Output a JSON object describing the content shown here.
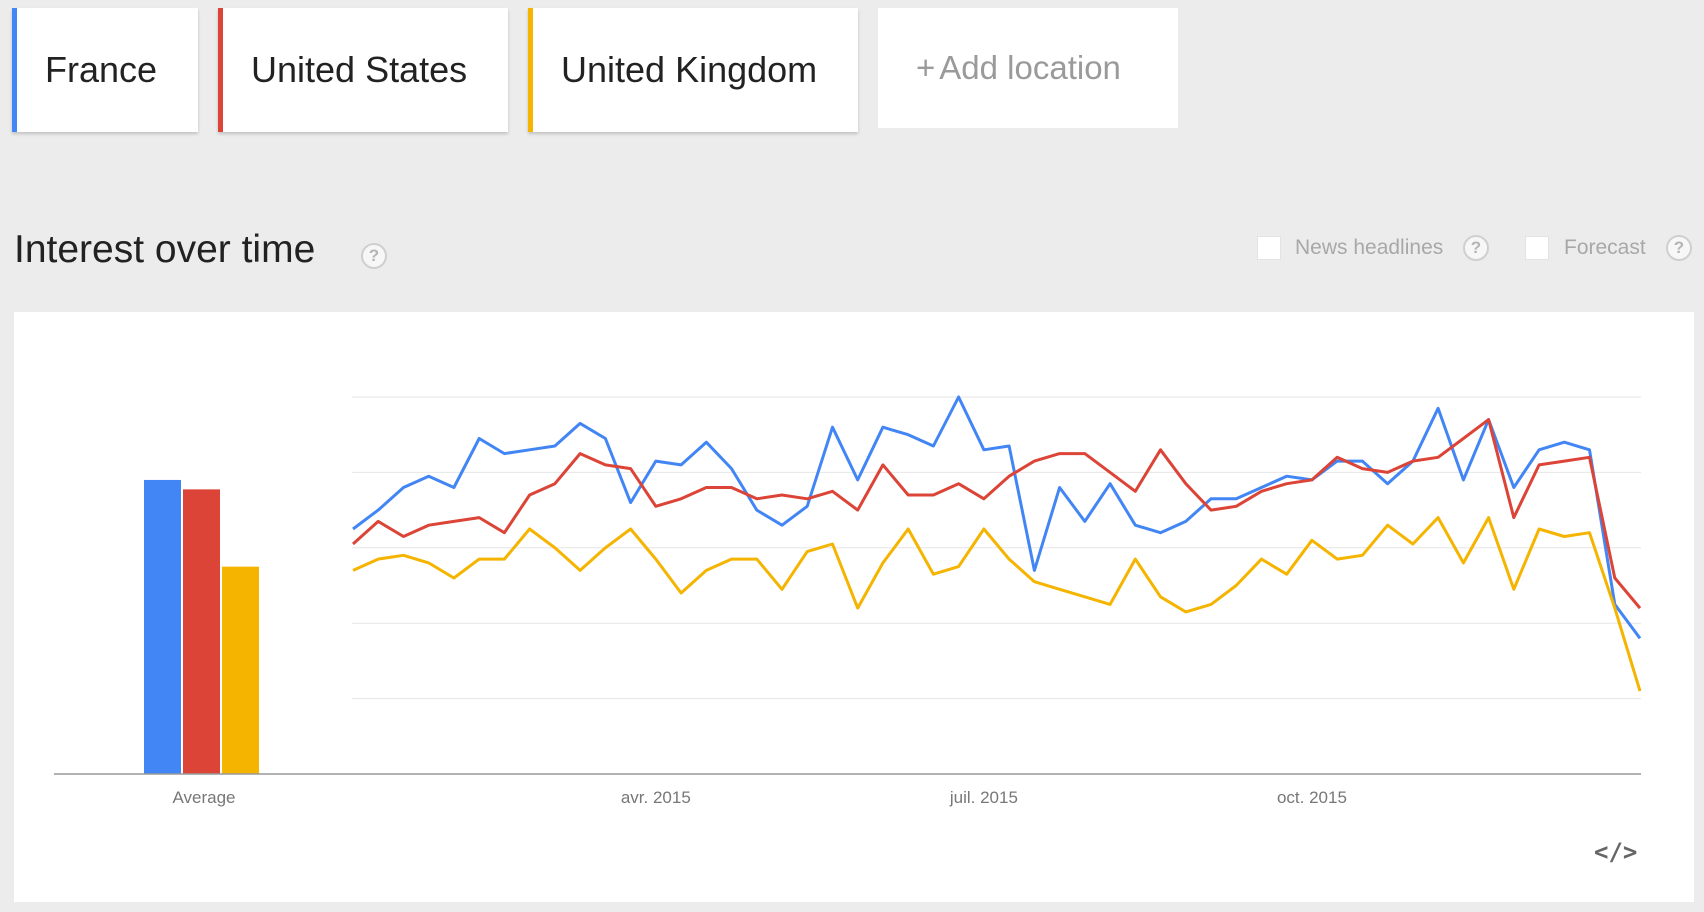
{
  "locations": [
    {
      "label": "France",
      "color": "#4285f4"
    },
    {
      "label": "United States",
      "color": "#db4437"
    },
    {
      "label": "United Kingdom",
      "color": "#f4b400"
    }
  ],
  "add_location": {
    "plus": "+",
    "label": "Add location"
  },
  "section": {
    "title": "Interest over time",
    "help": "?",
    "options": [
      {
        "label": "News headlines",
        "checked": false
      },
      {
        "label": "Forecast",
        "checked": false
      }
    ]
  },
  "embed_label": "</>",
  "chart_data": [
    {
      "type": "bar",
      "categories": [
        "Average"
      ],
      "series": [
        {
          "name": "France",
          "color": "#4285f4",
          "values": [
            78
          ]
        },
        {
          "name": "United States",
          "color": "#db4437",
          "values": [
            75.5
          ]
        },
        {
          "name": "United Kingdom",
          "color": "#f4b400",
          "values": [
            55
          ]
        }
      ],
      "ylim": [
        0,
        100
      ]
    },
    {
      "type": "line",
      "x_tick_labels": [
        "avr. 2015",
        "juil. 2015",
        "oct. 2015"
      ],
      "x_tick_index": [
        12,
        25,
        38
      ],
      "ylim": [
        0,
        100
      ],
      "gridlines": [
        20,
        40,
        60,
        80,
        100
      ],
      "series": [
        {
          "name": "France",
          "color": "#4285f4",
          "values": [
            65,
            70,
            76,
            79,
            76,
            89,
            85,
            86,
            87,
            93,
            89,
            72,
            83,
            82,
            88,
            81,
            70,
            66,
            71,
            92,
            78,
            92,
            90,
            87,
            100,
            86,
            87,
            54,
            76,
            67,
            77,
            66,
            64,
            67,
            73,
            73,
            76,
            79,
            78,
            83,
            83,
            77,
            83,
            97,
            78,
            94,
            76,
            86,
            88,
            86,
            45,
            36
          ]
        },
        {
          "name": "United States",
          "color": "#db4437",
          "values": [
            61,
            67,
            63,
            66,
            67,
            68,
            64,
            74,
            77,
            85,
            82,
            81,
            71,
            73,
            76,
            76,
            73,
            74,
            73,
            75,
            70,
            82,
            74,
            74,
            77,
            73,
            79,
            83,
            85,
            85,
            80,
            75,
            86,
            77,
            70,
            71,
            75,
            77,
            78,
            84,
            81,
            80,
            83,
            84,
            89,
            94,
            68,
            82,
            83,
            84,
            52,
            44
          ]
        },
        {
          "name": "United Kingdom",
          "color": "#f4b400",
          "values": [
            54,
            57,
            58,
            56,
            52,
            57,
            57,
            65,
            60,
            54,
            60,
            65,
            57,
            48,
            54,
            57,
            57,
            49,
            59,
            61,
            44,
            56,
            65,
            53,
            55,
            65,
            57,
            51,
            49,
            47,
            45,
            57,
            47,
            43,
            45,
            50,
            57,
            53,
            62,
            57,
            58,
            66,
            61,
            68,
            56,
            68,
            49,
            65,
            63,
            64,
            44,
            22
          ]
        }
      ]
    }
  ]
}
